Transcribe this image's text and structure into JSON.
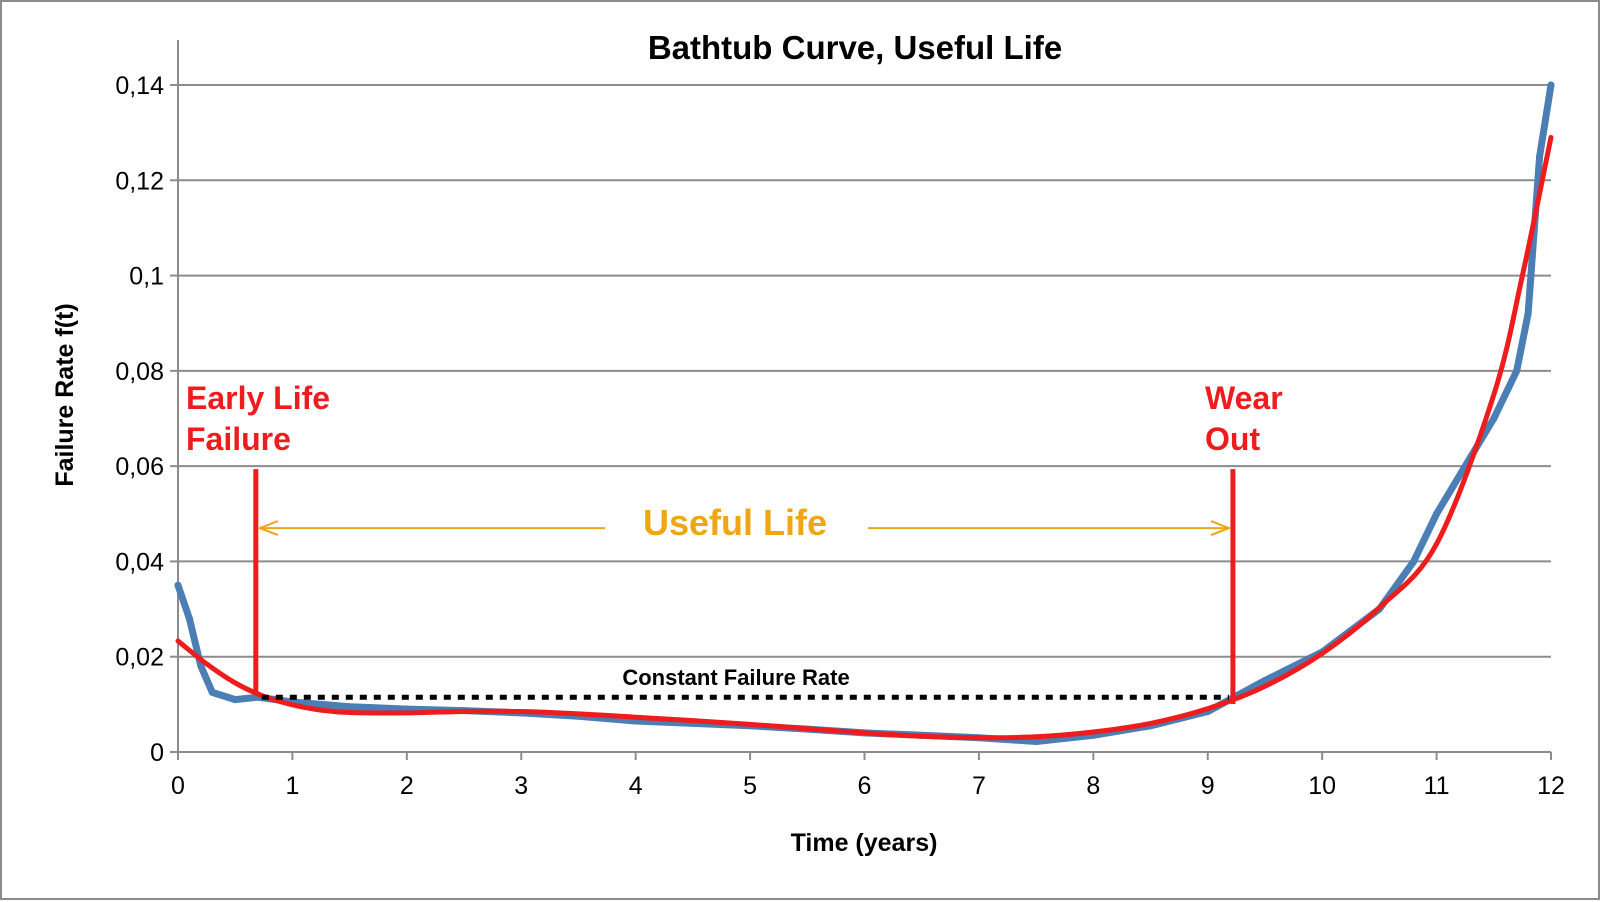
{
  "chart_data": {
    "type": "line",
    "title": "Bathtub Curve, Useful Life",
    "xlabel": "Time (years)",
    "ylabel": "Failure Rate f(t)",
    "xlim": [
      0,
      12
    ],
    "ylim": [
      0,
      0.14
    ],
    "x_ticks": [
      "0",
      "1",
      "2",
      "3",
      "4",
      "5",
      "6",
      "7",
      "8",
      "9",
      "10",
      "11",
      "12"
    ],
    "y_ticks": [
      "0",
      "0,02",
      "0,04",
      "0,06",
      "0,08",
      "0,1",
      "0,12",
      "0,14"
    ],
    "grid": "horizontal",
    "legend": "none",
    "series": [
      {
        "color": "#4a7eb5",
        "style": "noisy data",
        "x": [
          0,
          0.1,
          0.2,
          0.3,
          0.5,
          0.7,
          1,
          1.5,
          2,
          2.5,
          3,
          3.5,
          4,
          4.5,
          5,
          5.5,
          6,
          6.5,
          7,
          7.5,
          8,
          8.5,
          9,
          9.5,
          10,
          10.5,
          10.8,
          11,
          11.3,
          11.5,
          11.7,
          11.8,
          11.9,
          12
        ],
        "y": [
          0.035,
          0.028,
          0.018,
          0.0125,
          0.011,
          0.0115,
          0.0105,
          0.0095,
          0.009,
          0.0087,
          0.0082,
          0.0075,
          0.0065,
          0.006,
          0.0055,
          0.0048,
          0.004,
          0.0035,
          0.003,
          0.0022,
          0.0035,
          0.0055,
          0.0085,
          0.015,
          0.021,
          0.03,
          0.04,
          0.05,
          0.062,
          0.07,
          0.08,
          0.092,
          0.125,
          0.14
        ]
      },
      {
        "color": "#ee1c1c",
        "style": "smooth fit",
        "x": [
          0,
          0.25,
          0.5,
          0.75,
          1,
          1.25,
          1.5,
          2,
          2.5,
          3,
          3.5,
          4,
          4.5,
          5,
          5.5,
          6,
          6.5,
          7,
          7.5,
          8,
          8.5,
          9,
          9.5,
          10,
          10.5,
          11,
          11.5,
          11.75,
          12
        ],
        "y": [
          0.0233,
          0.0185,
          0.0145,
          0.0117,
          0.0099,
          0.0088,
          0.0083,
          0.0082,
          0.0085,
          0.0085,
          0.008,
          0.0073,
          0.0066,
          0.0058,
          0.0049,
          0.004,
          0.0033,
          0.003,
          0.0032,
          0.0042,
          0.006,
          0.0091,
          0.0138,
          0.0207,
          0.0303,
          0.0437,
          0.075,
          0.1,
          0.129
        ]
      }
    ],
    "annotations": {
      "early_life": {
        "lines": [
          "Early Life",
          "Failure"
        ],
        "x": 0.68,
        "y_from": 0,
        "y_to": 0.06,
        "color": "#ee1c1c"
      },
      "wear_out": {
        "lines": [
          "Wear",
          "Out"
        ],
        "x": 9.22,
        "y_from": 0,
        "y_to": 0.06,
        "color": "#ee1c1c"
      },
      "useful_life": {
        "label": "Useful Life",
        "x_from": 0.68,
        "x_to": 9.22,
        "y": 0.047,
        "color": "#f0a613"
      },
      "constant_rate": {
        "label": "Constant Failure Rate",
        "x_from": 0.68,
        "x_to": 9.22,
        "y": 0.0115,
        "color": "#000000"
      }
    }
  }
}
